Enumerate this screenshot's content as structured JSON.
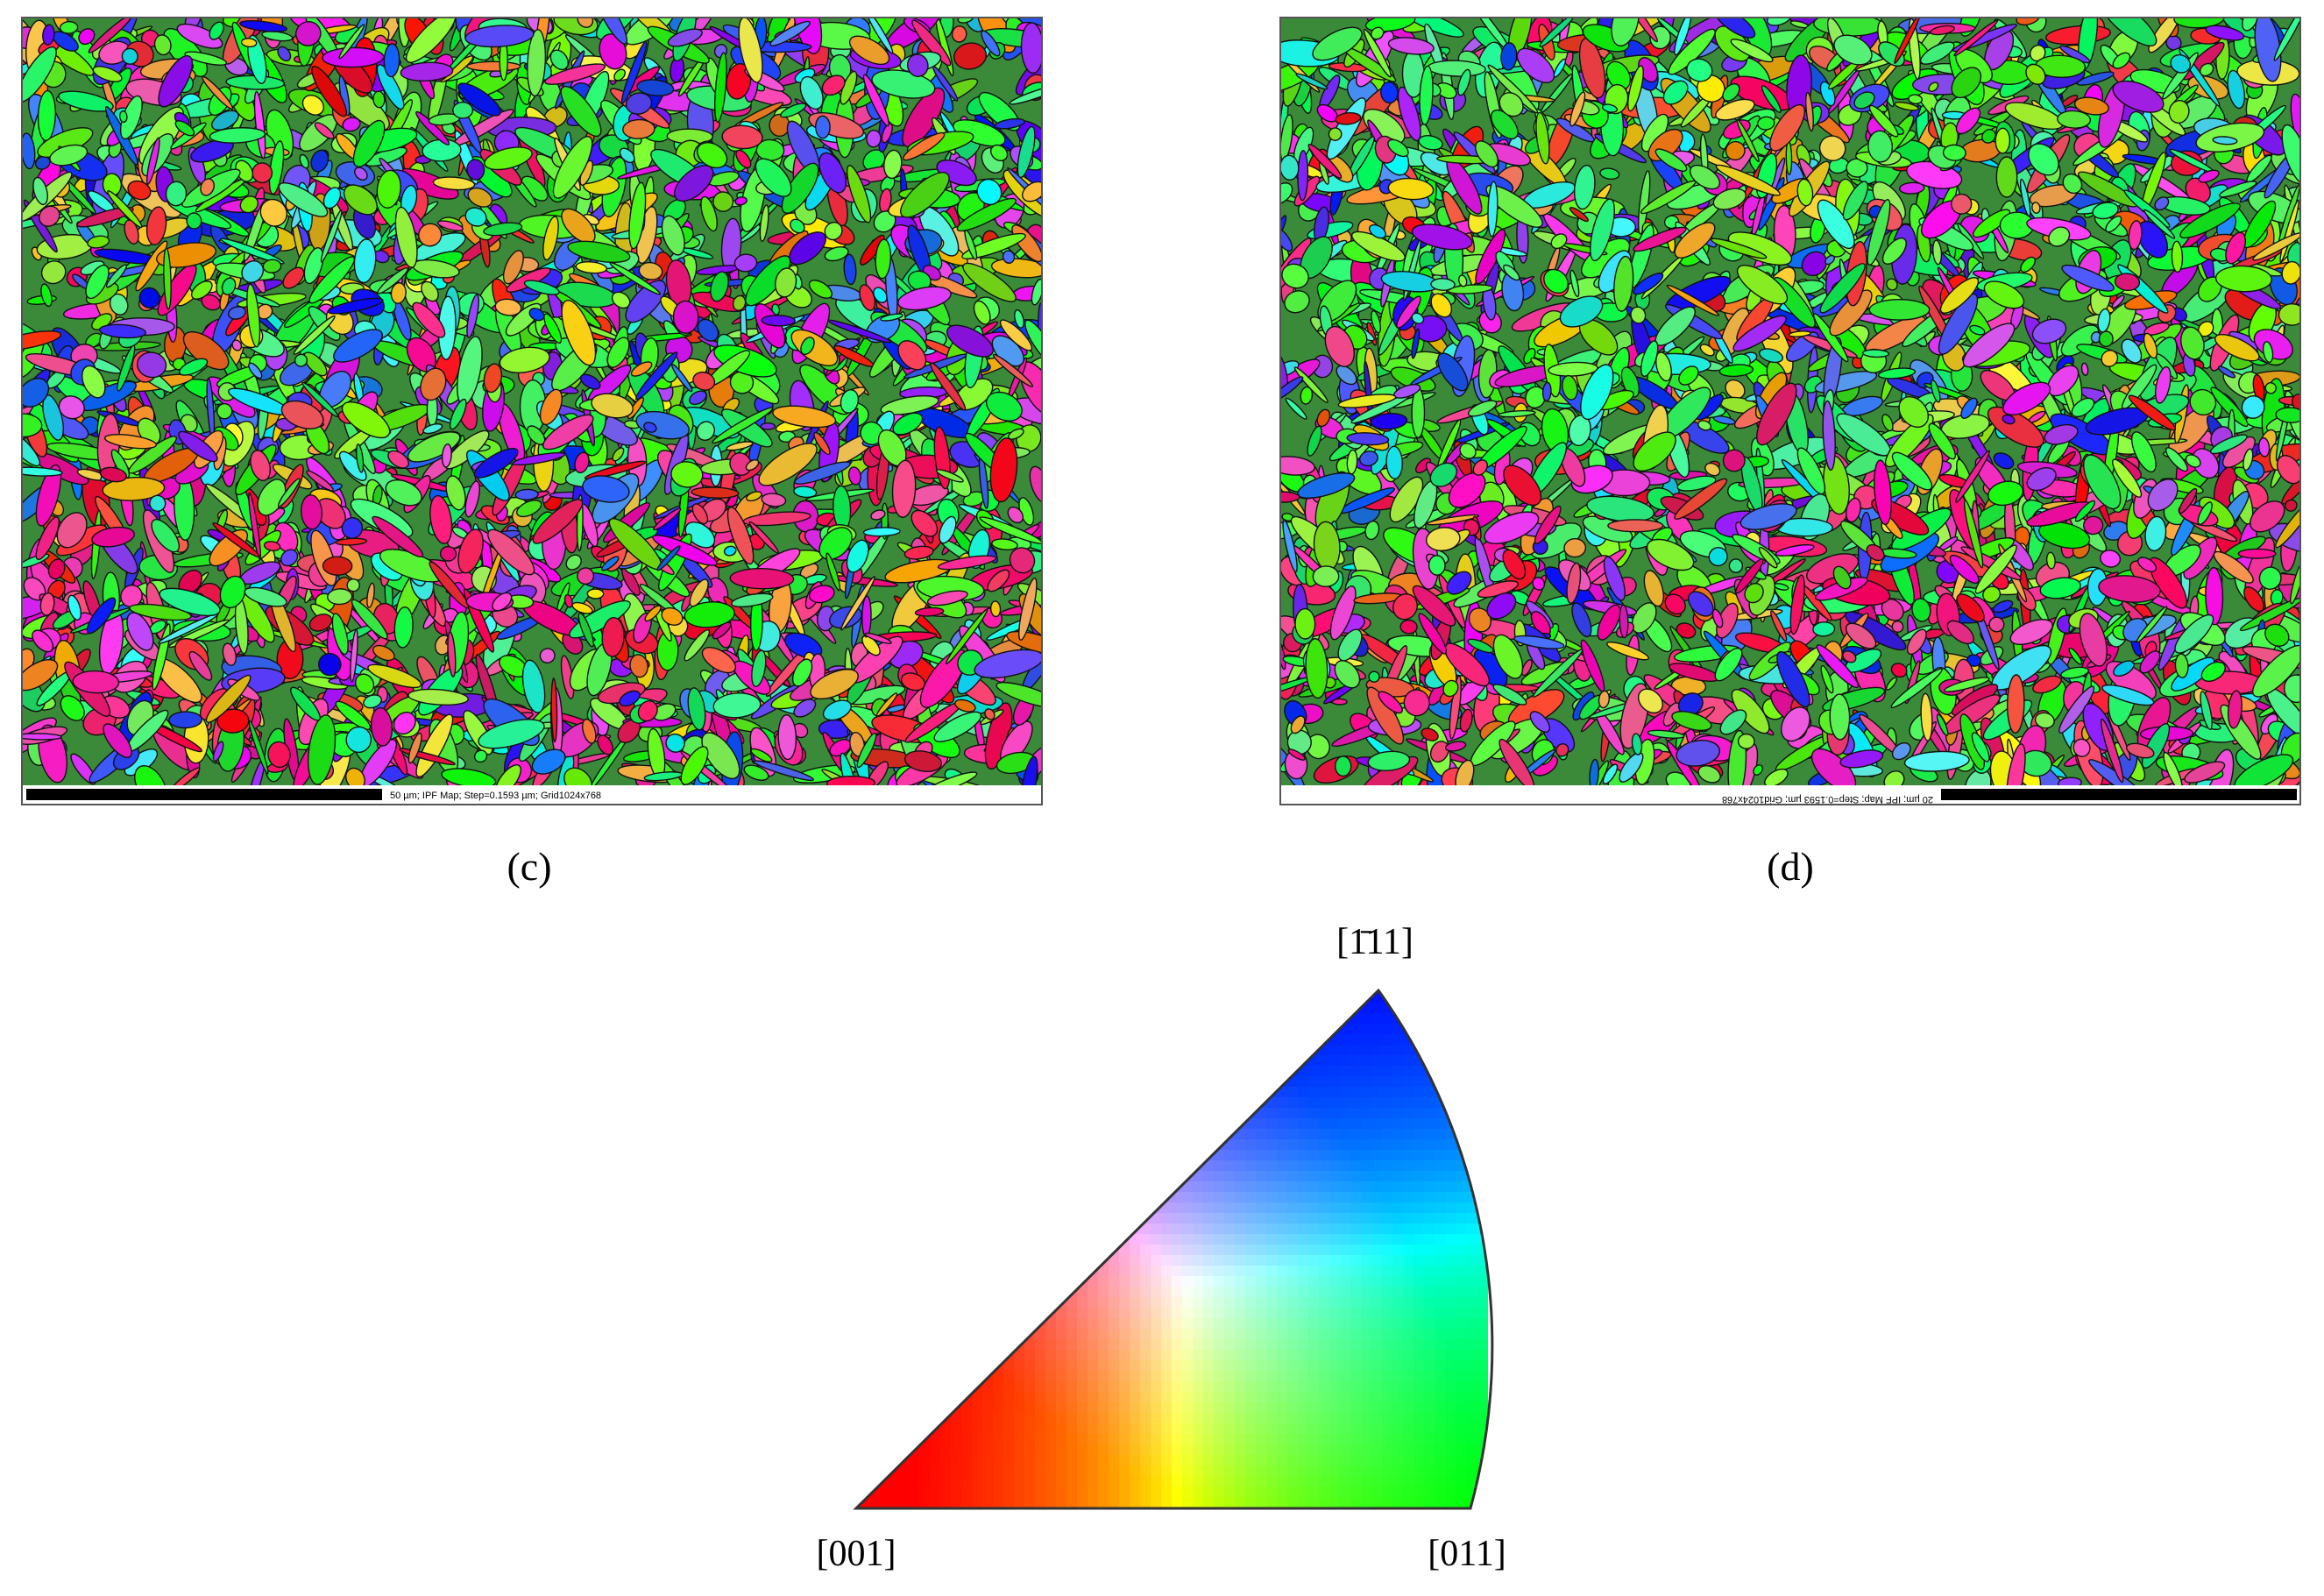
{
  "panels": [
    {
      "label": "(c)",
      "scale_bar": "50 µm; IPF Map; Step=0.1593 µm; Grid1024x768"
    },
    {
      "label": "(d)",
      "scale_bar": "20 µm; IPF Map; Step=0.1593 µm; Grid1024x768"
    }
  ],
  "legend": {
    "top": "[1̄11]",
    "left": "[001]",
    "right": "[011]"
  }
}
